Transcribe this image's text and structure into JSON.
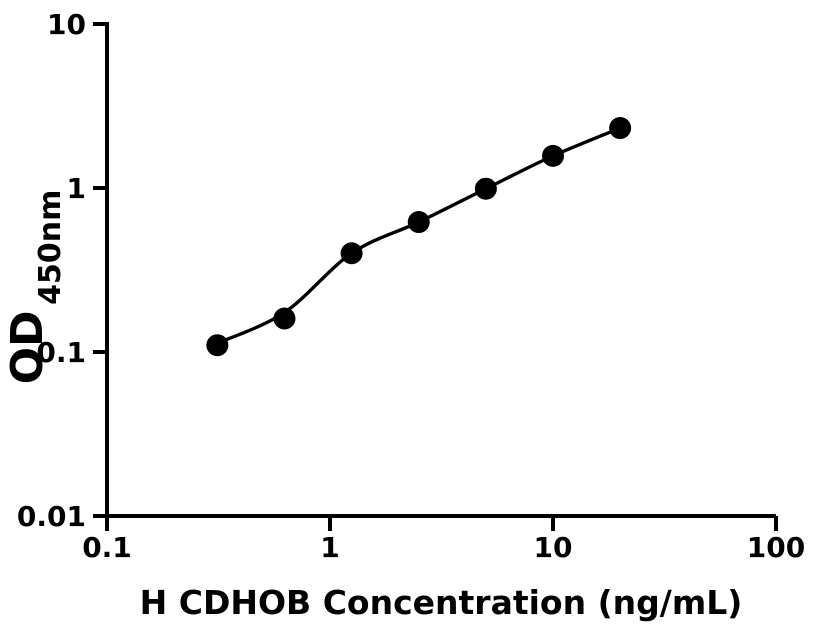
{
  "chart_data": {
    "type": "scatter",
    "title": "",
    "xlabel": "H CDHOB Concentration (ng/mL)",
    "ylabel": "OD",
    "ylabel_subscript": "450nm",
    "x_scale": "log",
    "y_scale": "log",
    "xlim": [
      0.1,
      100
    ],
    "ylim": [
      0.01,
      10
    ],
    "x_tick_labels": [
      "0.1",
      "1",
      "10",
      "100"
    ],
    "y_tick_labels": [
      "0.01",
      "0.1",
      "1",
      "10"
    ],
    "grid": false,
    "legend": false,
    "fit_line": true,
    "points": {
      "x": [
        0.3125,
        0.625,
        1.25,
        2.5,
        5,
        10,
        20
      ],
      "y": [
        0.11,
        0.16,
        0.4,
        0.62,
        0.99,
        1.57,
        2.32
      ]
    },
    "marker_color": "#000000",
    "line_color": "#000000",
    "axis_color": "#000000",
    "background_color": "#ffffff"
  }
}
